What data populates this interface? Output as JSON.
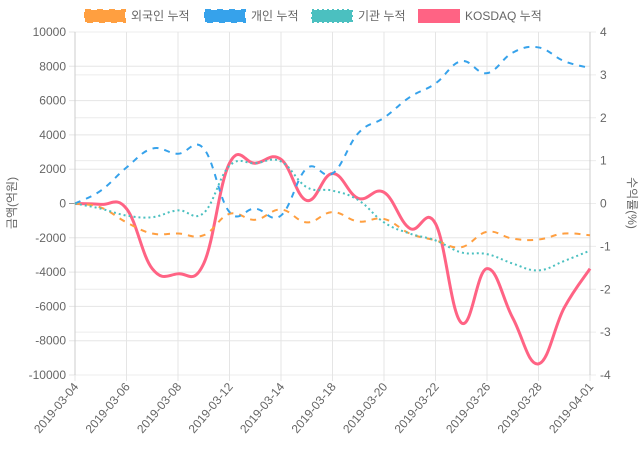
{
  "chart_data": {
    "type": "line",
    "x": [
      "2019-03-04",
      "2019-03-05",
      "2019-03-06",
      "2019-03-07",
      "2019-03-08",
      "2019-03-11",
      "2019-03-12",
      "2019-03-13",
      "2019-03-14",
      "2019-03-15",
      "2019-03-18",
      "2019-03-19",
      "2019-03-20",
      "2019-03-21",
      "2019-03-22",
      "2019-03-25",
      "2019-03-26",
      "2019-03-27",
      "2019-03-28",
      "2019-03-29",
      "2019-04-01"
    ],
    "x_tick_labels": [
      "2019-03-04",
      "2019-03-06",
      "2019-03-08",
      "2019-03-12",
      "2019-03-14",
      "2019-03-18",
      "2019-03-20",
      "2019-03-22",
      "2019-03-26",
      "2019-03-28",
      "2019-04-01"
    ],
    "ylabel_left": "금액(억원)",
    "ylabel_right": "수익률(%)",
    "ylim_left": [
      -10000,
      10000
    ],
    "ylim_right": [
      -4,
      4
    ],
    "yticks_left": [
      10000,
      8000,
      6000,
      4000,
      2000,
      0,
      -2000,
      -4000,
      -6000,
      -8000,
      -10000
    ],
    "yticks_right": [
      4,
      3,
      2,
      1,
      0,
      -1,
      -2,
      -3,
      -4
    ],
    "grid": true,
    "legend_position": "top",
    "series": [
      {
        "name": "외국인 누적",
        "axis": "left",
        "color": "#ff9f40",
        "style": "dashed",
        "values": [
          0,
          -230,
          -1100,
          -1750,
          -1750,
          -1850,
          -600,
          -950,
          -350,
          -1100,
          -500,
          -1050,
          -900,
          -1750,
          -2150,
          -2550,
          -1650,
          -2050,
          -2100,
          -1750,
          -1850
        ]
      },
      {
        "name": "개인 누적",
        "axis": "left",
        "color": "#36a2eb",
        "style": "dashed",
        "values": [
          0,
          750,
          2100,
          3200,
          2900,
          3200,
          -500,
          -300,
          -700,
          2050,
          1750,
          4100,
          5000,
          6200,
          7000,
          8300,
          7600,
          8800,
          9100,
          8300,
          7900
        ]
      },
      {
        "name": "기관 누적",
        "axis": "left",
        "color": "#4bc0c0",
        "style": "dotted",
        "values": [
          0,
          -300,
          -700,
          -800,
          -400,
          -550,
          2200,
          2350,
          2450,
          950,
          750,
          200,
          -1100,
          -1750,
          -2150,
          -2850,
          -2950,
          -3500,
          -3900,
          -3350,
          -2750
        ]
      },
      {
        "name": "KOSDAQ 누적",
        "axis": "right",
        "color": "#ff6384",
        "style": "solid",
        "values": [
          0,
          -0.02,
          -0.12,
          -1.52,
          -1.64,
          -1.4,
          0.94,
          0.94,
          1.03,
          0.07,
          0.7,
          0.12,
          0.26,
          -0.58,
          -0.47,
          -2.78,
          -1.52,
          -2.67,
          -3.74,
          -2.43,
          -1.52
        ]
      }
    ]
  }
}
